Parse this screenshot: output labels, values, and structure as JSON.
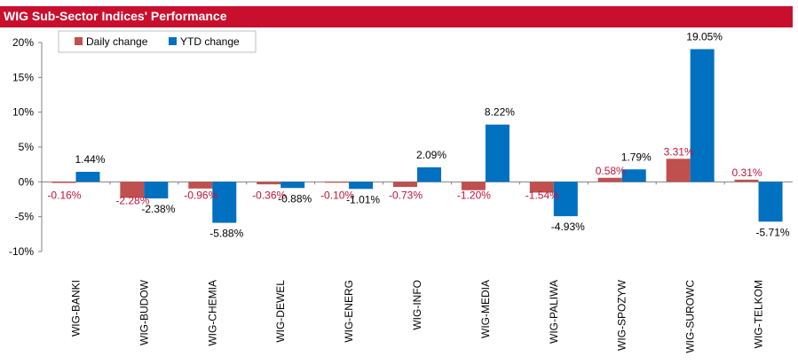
{
  "title": "WIG Sub-Sector Indices' Performance",
  "chart_data": {
    "type": "bar",
    "categories": [
      "WIG-BANKI",
      "WIG-BUDOW",
      "WIG-CHEMIA",
      "WIG-DEWEL",
      "WIG-ENERG",
      "WIG-INFO",
      "WIG-MEDIA",
      "WIG-PALIWA",
      "WIG-SPOZYW",
      "WIG-SUROWC",
      "WIG-TELKOM"
    ],
    "series": [
      {
        "name": "Daily change",
        "color": "#c0504d",
        "label_color": "#c0143c",
        "values": [
          -0.16,
          -2.28,
          -0.96,
          -0.36,
          -0.1,
          -0.73,
          -1.2,
          -1.54,
          0.58,
          3.31,
          0.31
        ],
        "labels": [
          "-0.16%",
          "-2.28%",
          "-0.96%",
          "-0.36%",
          "-0.10%",
          "-0.73%",
          "-1.20%",
          "-1.54%",
          "0.58%",
          "3.31%",
          "0.31%"
        ]
      },
      {
        "name": "YTD change",
        "color": "#0070c0",
        "label_color": "#000000",
        "values": [
          1.44,
          -2.38,
          -5.88,
          -0.88,
          -1.01,
          2.09,
          8.22,
          -4.93,
          1.79,
          19.05,
          -5.71
        ],
        "labels": [
          "1.44%",
          "-2.38%",
          "-5.88%",
          "-0.88%",
          "-1.01%",
          "2.09%",
          "8.22%",
          "-4.93%",
          "1.79%",
          "19.05%",
          "-5.71%"
        ]
      }
    ],
    "ylim": [
      -10,
      20
    ],
    "yticks": [
      20,
      15,
      10,
      5,
      0,
      -5,
      -10
    ],
    "ytick_labels": [
      "20%",
      "15%",
      "10%",
      "5%",
      "0%",
      "-5%",
      "-10%"
    ],
    "legend": "top-left",
    "grid": false
  }
}
